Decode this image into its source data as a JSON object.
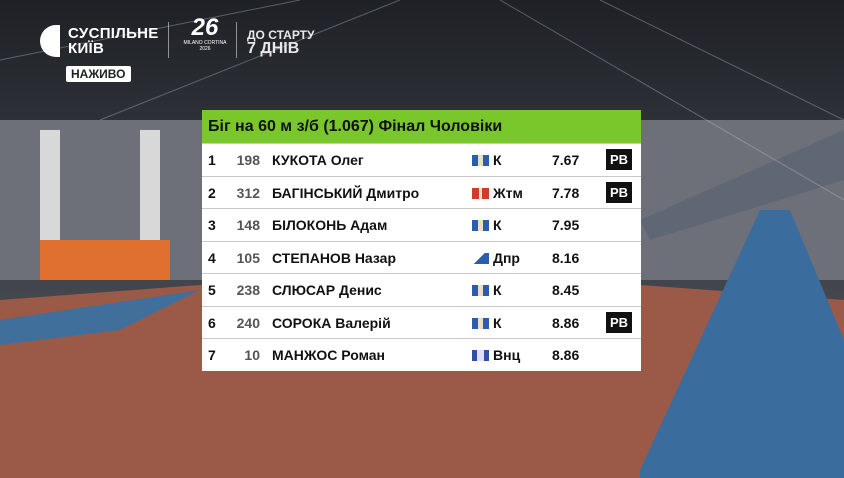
{
  "broadcaster": {
    "name_line1": "СУСПІЛЬНЕ",
    "name_line2": "КИЇВ",
    "live_badge": "НАЖИВО"
  },
  "event_logo": {
    "mark": "26",
    "caption": "MILANO CORTINA 2026"
  },
  "countdown": {
    "line1": "ДО СТАРТУ",
    "line2": "7 ДНІВ"
  },
  "results": {
    "title": "Біг на 60 м з/б (1.067)  Фінал Чоловіки",
    "accent_color": "#79c72a",
    "rows": [
      {
        "rank": "1",
        "bib": "198",
        "name": "КУКОТА Олег",
        "flag": "kyiv-flag-icon",
        "region": "К",
        "time": "7.67",
        "badge": "PB"
      },
      {
        "rank": "2",
        "bib": "312",
        "name": "БАГІНСЬКИЙ Дмитро",
        "flag": "zhytomyr-flag-icon",
        "region": "Жтм",
        "time": "7.78",
        "badge": "PB"
      },
      {
        "rank": "3",
        "bib": "148",
        "name": "БІЛОКОНЬ Адам",
        "flag": "kyiv-flag-icon",
        "region": "К",
        "time": "7.95",
        "badge": ""
      },
      {
        "rank": "4",
        "bib": "105",
        "name": "СТЕПАНОВ Назар",
        "flag": "dnipro-flag-icon",
        "region": "Дпр",
        "time": "8.16",
        "badge": ""
      },
      {
        "rank": "5",
        "bib": "238",
        "name": "СЛЮСАР Денис",
        "flag": "kyiv-flag-icon",
        "region": "К",
        "time": "8.45",
        "badge": ""
      },
      {
        "rank": "6",
        "bib": "240",
        "name": "СОРОКА Валерій",
        "flag": "kyiv-flag-icon",
        "region": "К",
        "time": "8.86",
        "badge": "PB"
      },
      {
        "rank": "7",
        "bib": "10",
        "name": "МАНЖОС Роман",
        "flag": "vinnytsia-flag-icon",
        "region": "Внц",
        "time": "8.86",
        "badge": ""
      }
    ]
  }
}
